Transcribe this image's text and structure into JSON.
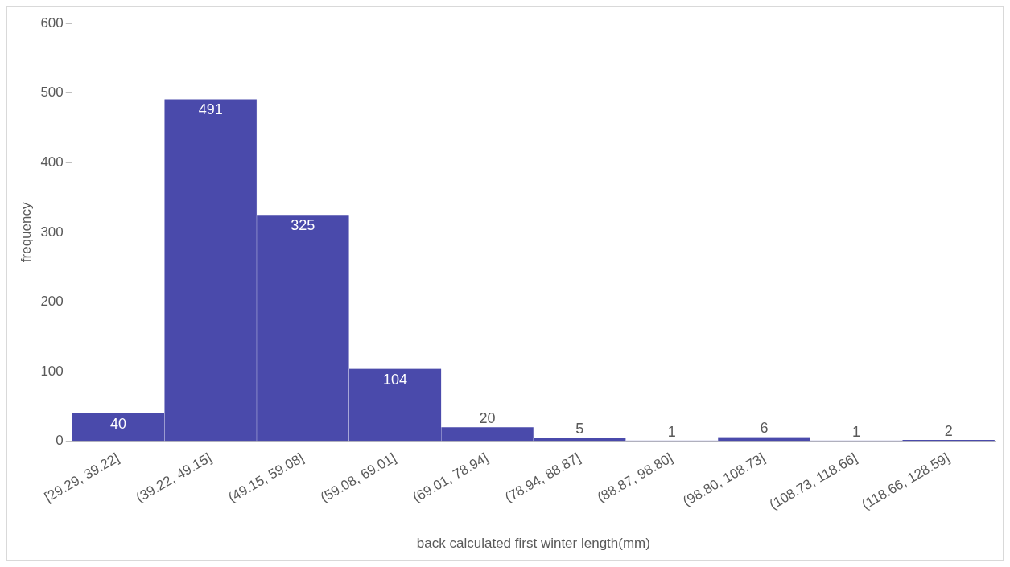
{
  "chart_data": {
    "type": "bar",
    "xlabel": "back calculated first winter length(mm)",
    "ylabel": "frequency",
    "categories": [
      "[29.29, 39.22]",
      "(39.22, 49.15]",
      "(49.15, 59.08]",
      "(59.08, 69.01]",
      "(69.01, 78.94]",
      "(78.94, 88.87]",
      "(88.87, 98.80]",
      "(98.80, 108.73]",
      "(108.73, 118.66]",
      "(118.66, 128.59]"
    ],
    "values": [
      40,
      491,
      325,
      104,
      20,
      5,
      1,
      6,
      1,
      2
    ],
    "color": "#4a4aab",
    "ylim": [
      0,
      600
    ],
    "yticks": [
      0,
      100,
      200,
      300,
      400,
      500,
      600
    ],
    "grid": false,
    "legend": false,
    "data_labels": true
  }
}
